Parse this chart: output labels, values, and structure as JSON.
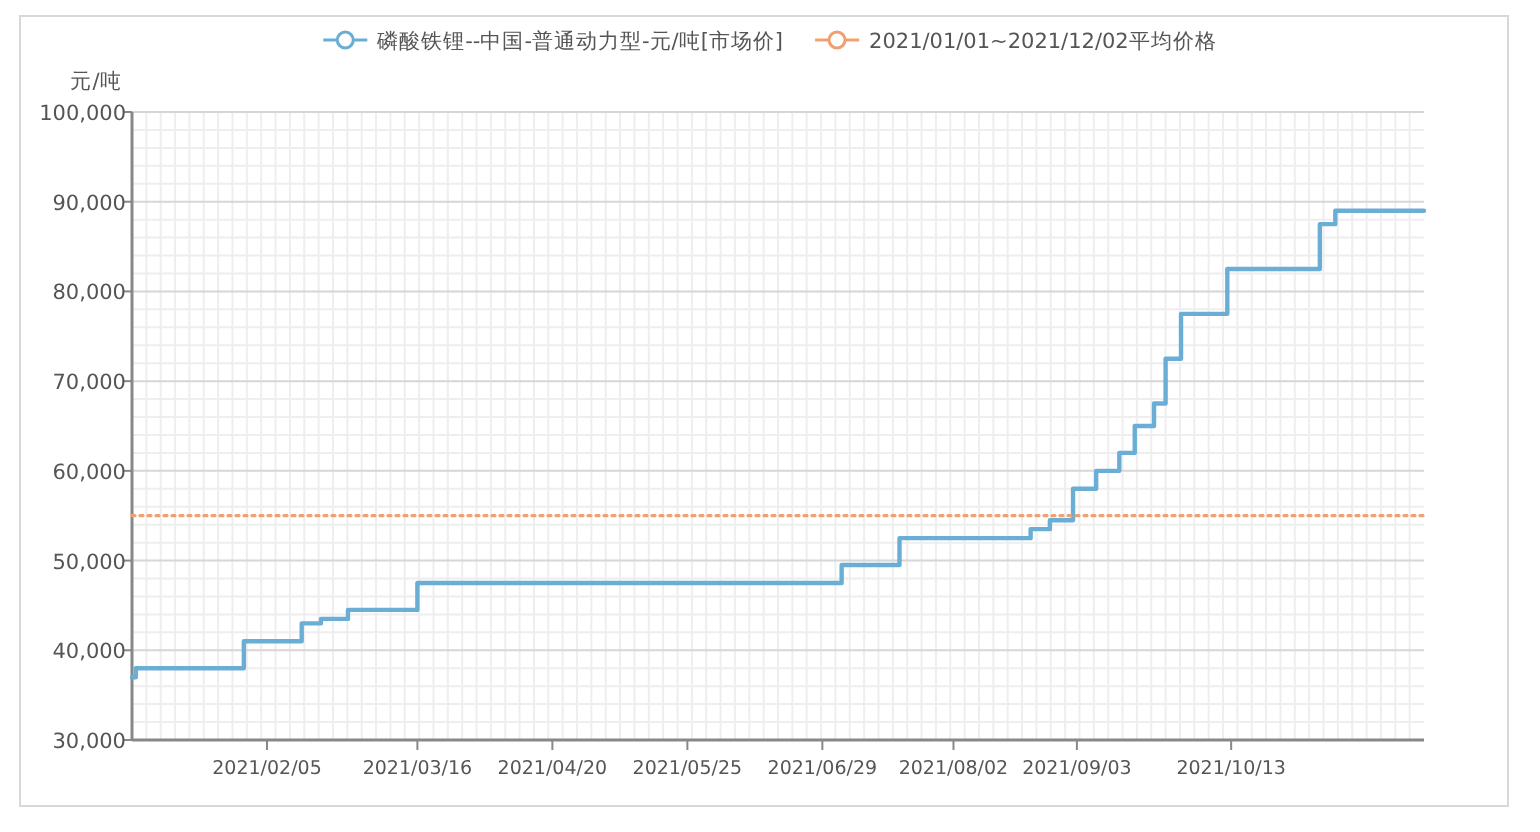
{
  "chart_data": {
    "type": "step",
    "ylabel": "元/吨",
    "xlim": [
      "2021-01-01",
      "2021-12-02"
    ],
    "xticks": [
      {
        "value": "2021-02-05",
        "label": "2021/02/05"
      },
      {
        "value": "2021-03-16",
        "label": "2021/03/16"
      },
      {
        "value": "2021-04-20",
        "label": "2021/04/20"
      },
      {
        "value": "2021-05-25",
        "label": "2021/05/25"
      },
      {
        "value": "2021-06-29",
        "label": "2021/06/29"
      },
      {
        "value": "2021-08-02",
        "label": "2021/08/02"
      },
      {
        "value": "2021-09-03",
        "label": "2021/09/03"
      },
      {
        "value": "2021-10-13",
        "label": "2021/10/13"
      }
    ],
    "ylim": [
      30000,
      100000
    ],
    "yticks": [
      {
        "value": 30000,
        "label": "30,000"
      },
      {
        "value": 40000,
        "label": "40,000"
      },
      {
        "value": 50000,
        "label": "50,000"
      },
      {
        "value": 60000,
        "label": "60,000"
      },
      {
        "value": 70000,
        "label": "70,000"
      },
      {
        "value": 80000,
        "label": "80,000"
      },
      {
        "value": 90000,
        "label": "90,000"
      },
      {
        "value": 100000,
        "label": "100,000"
      }
    ],
    "grid": true,
    "legend": "top",
    "series": [
      {
        "name": "磷酸铁锂--中国-普通动力型-元/吨[市场价]",
        "color": "#6aaed6",
        "line_style": "solid",
        "x": [
          "2021-01-01",
          "2021-01-02",
          "2021-01-30",
          "2021-02-14",
          "2021-02-19",
          "2021-02-26",
          "2021-03-16",
          "2021-07-04",
          "2021-07-19",
          "2021-08-22",
          "2021-08-27",
          "2021-09-02",
          "2021-09-08",
          "2021-09-14",
          "2021-09-18",
          "2021-09-23",
          "2021-09-26",
          "2021-09-30",
          "2021-10-12",
          "2021-11-05",
          "2021-11-09",
          "2021-12-02"
        ],
        "values": [
          37000,
          38000,
          41000,
          43000,
          43500,
          44500,
          47500,
          49500,
          52500,
          53500,
          54500,
          58000,
          60000,
          62000,
          65000,
          67500,
          72500,
          77500,
          82500,
          87500,
          89000,
          89000
        ]
      },
      {
        "name": "2021/01/01~2021/12/02平均价格",
        "color": "#f0a070",
        "type": "line",
        "line_style": "dotted",
        "x": [
          "2021-01-01",
          "2021-12-02"
        ],
        "values": [
          55000,
          55000
        ]
      }
    ]
  }
}
